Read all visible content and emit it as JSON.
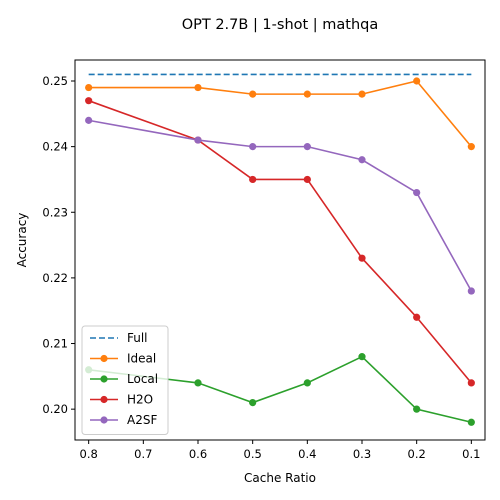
{
  "chart_data": {
    "type": "line",
    "title": "OPT 2.7B | 1-shot | mathqa",
    "xlabel": "Cache Ratio",
    "ylabel": "Accuracy",
    "x_inverted": true,
    "xlim": [
      0.825,
      0.075
    ],
    "ylim": [
      0.1953,
      0.2532
    ],
    "x_ticks": [
      "0.8",
      "0.7",
      "0.6",
      "0.5",
      "0.4",
      "0.3",
      "0.2",
      "0.1"
    ],
    "y_ticks": [
      "0.20",
      "0.21",
      "0.22",
      "0.23",
      "0.24",
      "0.25"
    ],
    "x": [
      0.8,
      0.6,
      0.5,
      0.4,
      0.3,
      0.2,
      0.1
    ],
    "grid": false,
    "legend_position": "lower-left",
    "series": [
      {
        "name": "Full",
        "color": "#1f77b4",
        "style": "dashed",
        "values": [
          0.251,
          0.251,
          0.251,
          0.251,
          0.251,
          0.251,
          0.251
        ]
      },
      {
        "name": "Ideal",
        "color": "#ff7f0e",
        "style": "solid-marker",
        "values": [
          0.249,
          0.249,
          0.248,
          0.248,
          0.248,
          0.25,
          0.24
        ]
      },
      {
        "name": "Local",
        "color": "#2ca02c",
        "style": "solid-marker",
        "values": [
          0.206,
          0.204,
          0.201,
          0.204,
          0.208,
          0.2,
          0.198
        ]
      },
      {
        "name": "H2O",
        "color": "#d62728",
        "style": "solid-marker",
        "values": [
          0.247,
          0.241,
          0.235,
          0.235,
          0.223,
          0.214,
          0.204
        ]
      },
      {
        "name": "A2SF",
        "color": "#9467bd",
        "style": "solid-marker",
        "values": [
          0.244,
          0.241,
          0.24,
          0.24,
          0.238,
          0.233,
          0.218
        ]
      }
    ]
  }
}
